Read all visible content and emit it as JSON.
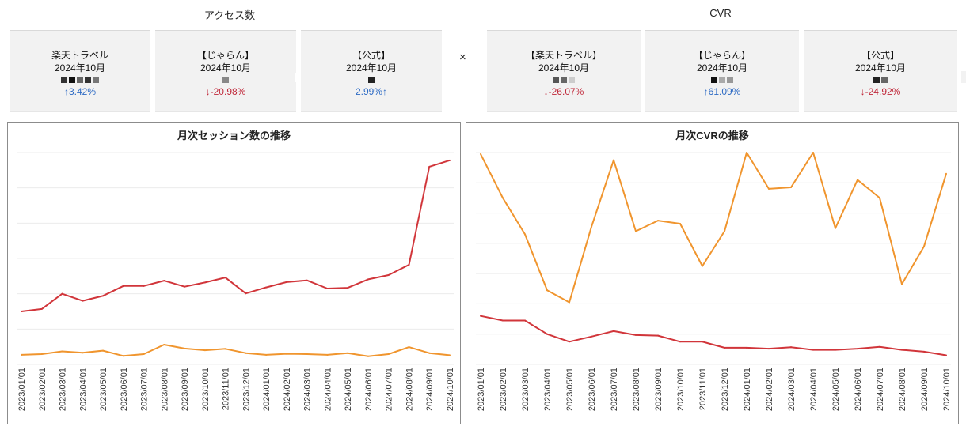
{
  "sections": {
    "access_title": "アクセス数",
    "cvr_title": "CVR",
    "times_sign": "×"
  },
  "cards": [
    {
      "name": "楽天トラベル",
      "period": "2024年10月",
      "change": "↑3.42%",
      "trend": "up",
      "blocks": [
        "#333",
        "#111",
        "#666",
        "#333",
        "#777"
      ]
    },
    {
      "name": "【じゃらん】",
      "period": "2024年10月",
      "change": "↓-20.98%",
      "trend": "down",
      "blocks": [
        "#888"
      ]
    },
    {
      "name": "【公式】",
      "period": "2024年10月",
      "change": "2.99%↑",
      "trend": "up",
      "blocks": [
        "#222"
      ]
    },
    {
      "name": "【楽天トラベル】",
      "period": "2024年10月",
      "change": "↓-26.07%",
      "trend": "down",
      "blocks": [
        "#555",
        "#666",
        "#ccc"
      ]
    },
    {
      "name": "【じゃらん】",
      "period": "2024年10月",
      "change": "↑61.09%",
      "trend": "up",
      "blocks": [
        "#111",
        "#aaa",
        "#999"
      ]
    },
    {
      "name": "【公式】",
      "period": "2024年10月",
      "change": "↓-24.92%",
      "trend": "down",
      "blocks": [
        "#222",
        "#666"
      ]
    }
  ],
  "chart_data": [
    {
      "type": "line",
      "title": "月次セッション数の推移",
      "x": [
        "2023/01/01",
        "2023/02/01",
        "2023/03/01",
        "2023/04/01",
        "2023/05/01",
        "2023/06/01",
        "2023/07/01",
        "2023/08/01",
        "2023/09/01",
        "2023/10/01",
        "2023/11/01",
        "2023/12/01",
        "2024/01/01",
        "2024/02/01",
        "2024/03/01",
        "2024/04/01",
        "2024/05/01",
        "2024/06/01",
        "2024/07/01",
        "2024/08/01",
        "2024/09/01",
        "2024/10/01"
      ],
      "ylim": [
        0,
        600
      ],
      "grid": true,
      "series": [
        {
          "color": "#d1353a",
          "values": [
            150,
            157,
            200,
            180,
            194,
            222,
            222,
            237,
            220,
            232,
            246,
            201,
            218,
            233,
            238,
            215,
            217,
            241,
            253,
            282,
            560,
            578
          ]
        },
        {
          "color": "#f0952e",
          "values": [
            27,
            29,
            37,
            33,
            39,
            24,
            29,
            56,
            45,
            40,
            44,
            32,
            27,
            30,
            29,
            27,
            32,
            23,
            29,
            49,
            32,
            26
          ]
        }
      ]
    },
    {
      "type": "line",
      "title": "月次CVRの推移",
      "x": [
        "2023/01/01",
        "2023/02/01",
        "2023/03/01",
        "2023/04/01",
        "2023/05/01",
        "2023/06/01",
        "2023/07/01",
        "2023/08/01",
        "2023/09/01",
        "2023/10/01",
        "2023/11/01",
        "2023/12/01",
        "2024/01/01",
        "2024/02/01",
        "2024/03/01",
        "2024/04/01",
        "2024/05/01",
        "2024/06/01",
        "2024/07/01",
        "2024/08/01",
        "2024/09/01",
        "2024/10/01"
      ],
      "ylim": [
        0,
        7
      ],
      "grid": true,
      "series": [
        {
          "color": "#f0952e",
          "values": [
            6.95,
            5.5,
            4.3,
            2.45,
            2.05,
            4.55,
            6.75,
            4.4,
            4.75,
            4.65,
            3.25,
            4.4,
            7.0,
            5.8,
            5.85,
            7.0,
            4.5,
            6.1,
            5.5,
            2.65,
            3.9,
            6.3
          ]
        },
        {
          "color": "#d1353a",
          "values": [
            1.6,
            1.45,
            1.45,
            1.0,
            0.75,
            0.92,
            1.1,
            0.97,
            0.95,
            0.75,
            0.75,
            0.55,
            0.55,
            0.52,
            0.57,
            0.48,
            0.48,
            0.52,
            0.58,
            0.48,
            0.42,
            0.3
          ]
        }
      ]
    }
  ]
}
